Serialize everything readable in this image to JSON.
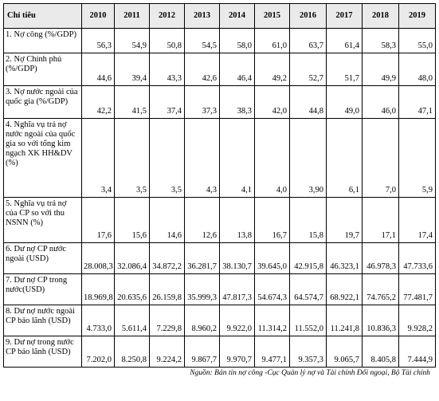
{
  "table": {
    "headers": [
      "Chỉ tiêu",
      "2010",
      "2011",
      "2012",
      "2013",
      "2014",
      "2015",
      "2016",
      "2017",
      "2018",
      "2019"
    ],
    "rows": [
      {
        "label": "1. Nợ công (%/GDP)",
        "values": [
          "56,3",
          "54,9",
          "50,8",
          "54,5",
          "58,0",
          "61,0",
          "63,7",
          "61,4",
          "58,3",
          "55,0"
        ]
      },
      {
        "label": "2. Nợ Chính phủ (%/GDP)",
        "values": [
          "44,6",
          "39,4",
          "43,3",
          "42,6",
          "46,4",
          "49,2",
          "52,7",
          "51,7",
          "49,9",
          "48,0"
        ]
      },
      {
        "label": "3. Nợ nước ngoài của quốc gia (%/GDP)",
        "values": [
          "42,2",
          "41,5",
          "37,4",
          "37,3",
          "38,3",
          "42,0",
          "44,8",
          "49,0",
          "46,0",
          "47,1"
        ]
      },
      {
        "label": "4. Nghĩa vụ trả nợ nước ngoài của quốc gia so với tổng kim ngạch XK HH&DV (%)",
        "values": [
          "3,4",
          "3,5",
          "3,5",
          "4,3",
          "4,1",
          "4,0",
          "3,90",
          "6,1",
          "7,0",
          "5,9"
        ]
      },
      {
        "label": "5. Nghĩa vụ trả nợ của CP so với thu NSNN (%)",
        "values": [
          "17,6",
          "15,6",
          "14,6",
          "12,6",
          "13,8",
          "16,7",
          "15,8",
          "19,7",
          "17,1",
          "17,4"
        ]
      },
      {
        "label": "6. Dư nợ CP nước ngoài (USD)",
        "values": [
          "28.008,3",
          "32.086,4",
          "34.872,2",
          "36.281,7",
          "38.130,7",
          "39.645,0",
          "42.915,8",
          "46.323,1",
          "46.978,3",
          "47.733,6"
        ]
      },
      {
        "label": "7. Dư nợ CP trong nước(USD)",
        "values": [
          "18.969,8",
          "20.635,6",
          "26.159,8",
          "35.999,3",
          "47.817,3",
          "54.674,3",
          "64.574,7",
          "68.922,1",
          "74.765,2",
          "77.481,7"
        ]
      },
      {
        "label": "8. Dư nợ nước ngoài CP bảo lãnh (USD)",
        "values": [
          "4.733,0",
          "5.611,4",
          "7.229,8",
          "8.960,2",
          "9.922,0",
          "11.314,2",
          "11.552,0",
          "11.241,8",
          "10.836,3",
          "9.928,2"
        ]
      },
      {
        "label": "9. Dư nợ trong nước CP bảo lãnh (USD)",
        "values": [
          "7.202,0",
          "8.250,8",
          "9.224,2",
          "9.867,7",
          "9.970,7",
          "9.477,1",
          "9.357,3",
          "9.065,7",
          "8.405,8",
          "7.444,9"
        ]
      }
    ]
  },
  "source": "Nguồn: Bản tin nợ công -Cục Quản lý nợ và Tài chính Đối ngoại, Bộ Tài chính"
}
